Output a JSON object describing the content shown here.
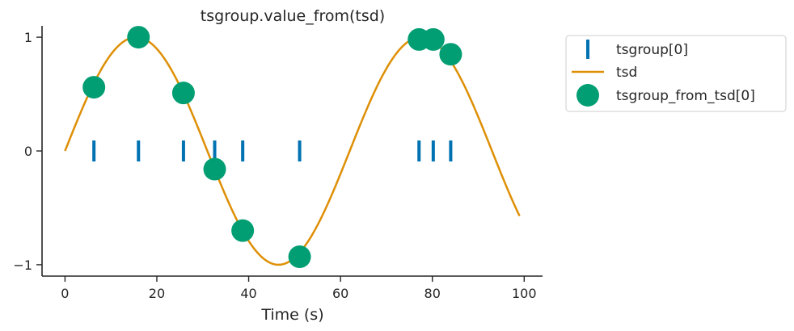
{
  "chart_data": {
    "type": "scatter",
    "title": "tsgroup.value_from(tsd)",
    "xlabel": "Time (s)",
    "ylabel": "",
    "xlim": [
      -5,
      104
    ],
    "ylim": [
      -1.1,
      1.1
    ],
    "xticks": [
      0,
      20,
      40,
      60,
      80,
      100
    ],
    "yticks": [
      -1,
      0,
      1
    ],
    "ytick_labels": [
      "−1",
      "0",
      "1"
    ],
    "grid": false,
    "legend_placement": "outside-top-right",
    "series": [
      {
        "name": "tsgroup[0]",
        "kind": "event-raster",
        "color": "#0072b2",
        "x": [
          6.3,
          16.0,
          25.8,
          32.6,
          38.7,
          51.1,
          77.1,
          80.2,
          84.0
        ]
      },
      {
        "name": "tsd",
        "kind": "line",
        "color": "#de8f05",
        "function": "sin(2*pi*t/62)",
        "x_range": [
          0,
          99
        ]
      },
      {
        "name": "tsgroup_from_tsd[0]",
        "kind": "scatter",
        "color": "#029e73",
        "x": [
          6.3,
          16.0,
          25.8,
          32.6,
          38.7,
          51.1,
          77.1,
          80.2,
          84.0
        ],
        "y": [
          0.56,
          1.0,
          0.51,
          -0.16,
          -0.7,
          -0.93,
          0.98,
          0.98,
          0.85
        ]
      }
    ]
  }
}
